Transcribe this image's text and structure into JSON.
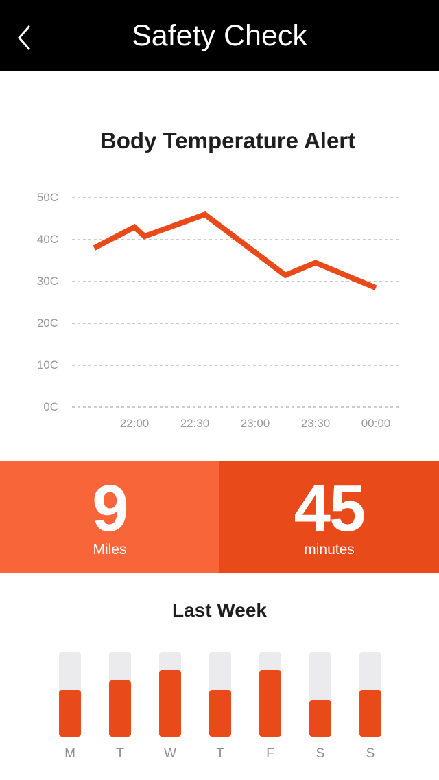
{
  "header": {
    "title": "Safety Check",
    "back_icon": "chevron-left-icon"
  },
  "colors": {
    "accent": "#e84a1a",
    "accent_light": "#f76538",
    "track": "#ebebee",
    "grid": "#9a9a9a",
    "tick_text": "#9a9a9a"
  },
  "chart_data": {
    "type": "line",
    "title": "Body Temperature Alert",
    "y_ticks": [
      "50C",
      "40C",
      "30C",
      "20C",
      "10C",
      "0C"
    ],
    "x_ticks": [
      "22:00",
      "22:30",
      "23:00",
      "23:30",
      "00:00"
    ],
    "ylim": [
      0,
      50
    ],
    "xlim": [
      "21:40",
      "00:00"
    ],
    "grid": true,
    "series": [
      {
        "x": [
          "21:40",
          "22:00",
          "22:05",
          "22:35",
          "23:15",
          "23:30",
          "00:00"
        ],
        "values": [
          38,
          43,
          40.8,
          46,
          31.5,
          34.5,
          28.5
        ]
      }
    ]
  },
  "stats": {
    "distance": {
      "value": "9",
      "label": "Miles"
    },
    "duration": {
      "value": "45",
      "label": "minutes"
    }
  },
  "week": {
    "title": "Last Week",
    "days": [
      {
        "label": "M",
        "level": 0.55
      },
      {
        "label": "T",
        "level": 0.67
      },
      {
        "label": "W",
        "level": 0.79
      },
      {
        "label": "T",
        "level": 0.55
      },
      {
        "label": "F",
        "level": 0.79
      },
      {
        "label": "S",
        "level": 0.43
      },
      {
        "label": "S",
        "level": 0.55
      }
    ]
  }
}
